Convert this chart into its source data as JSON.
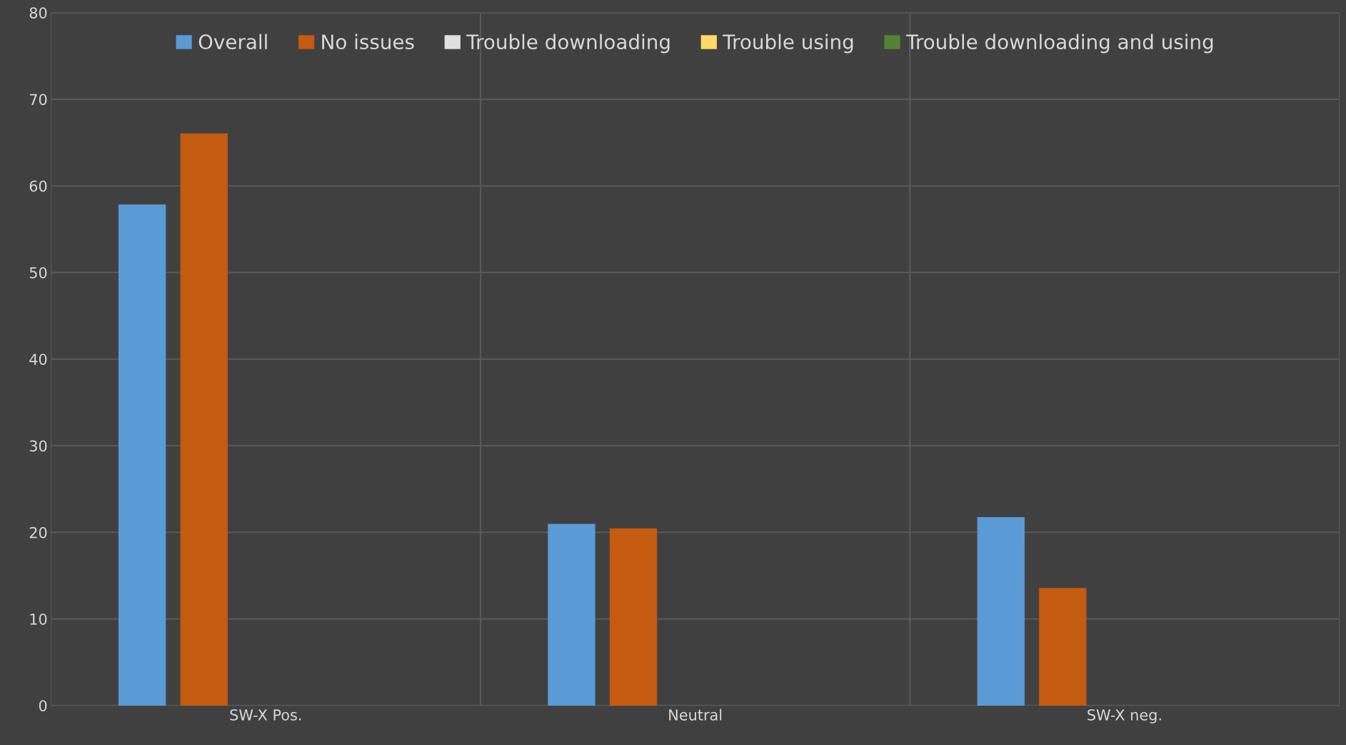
{
  "chart_data": {
    "type": "bar",
    "categories": [
      "SW-X Pos.",
      "Neutral",
      "SW-X neg."
    ],
    "series": [
      {
        "name": "Overall",
        "color": "#5b9bd5",
        "values": [
          57.8,
          20.9,
          21.7
        ]
      },
      {
        "name": "No issues",
        "color": "#c55a11",
        "values": [
          66.0,
          20.4,
          13.5
        ]
      },
      {
        "name": "Trouble downloading",
        "color": "#e0e0e0",
        "values": [
          null,
          null,
          null
        ]
      },
      {
        "name": "Trouble using",
        "color": "#ffd966",
        "values": [
          null,
          null,
          null
        ]
      },
      {
        "name": "Trouble downloading and using",
        "color": "#548235",
        "values": [
          null,
          null,
          null
        ]
      }
    ],
    "ylim": [
      0,
      80
    ],
    "yticks": [
      0,
      10,
      20,
      30,
      40,
      50,
      60,
      70,
      80
    ],
    "grid": true,
    "legend": "top"
  }
}
